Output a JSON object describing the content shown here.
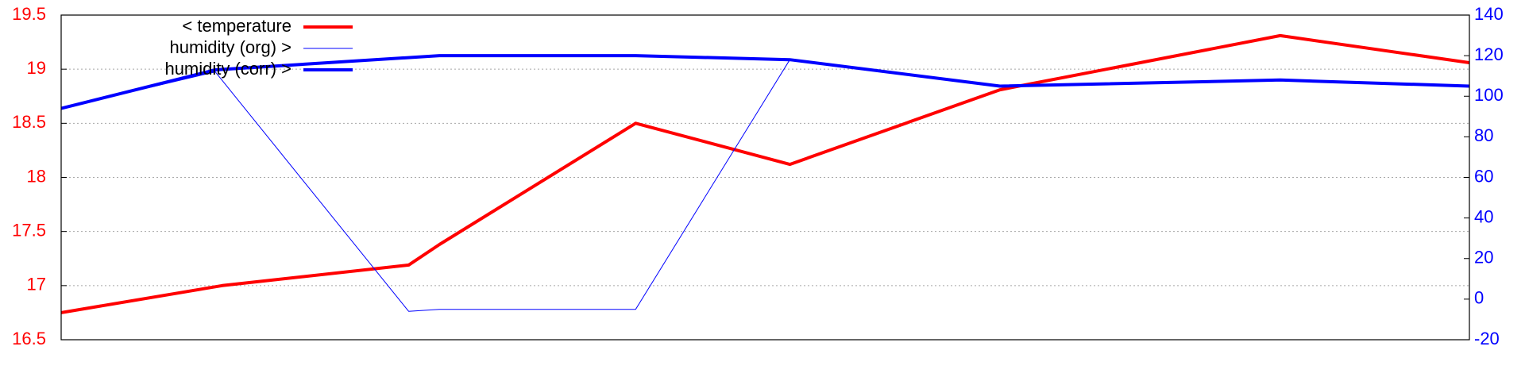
{
  "chart_data": {
    "type": "line",
    "x": [
      0,
      1,
      2,
      3,
      4,
      5,
      6,
      7,
      8,
      9
    ],
    "x_ticks_shown": false,
    "grid": "horizontal dotted",
    "legend": "top-left",
    "y_left": {
      "ylim": [
        16.5,
        19.5
      ],
      "ticks": [
        "16.5",
        "17",
        "17.5",
        "18",
        "18.5",
        "19",
        "19.5"
      ],
      "color": "#ff0000"
    },
    "y_right": {
      "ylim": [
        -20,
        140
      ],
      "ticks": [
        "-20",
        "0",
        "20",
        "40",
        "60",
        "80",
        "100",
        "120",
        "140"
      ],
      "color": "#0000ff"
    },
    "series": [
      {
        "name": "< temperature",
        "axis": "left",
        "color": "#ff0000",
        "line": "thick",
        "points": [
          {
            "x": 0.0,
            "y": 16.75
          },
          {
            "x": 1.15,
            "y": 17.0
          },
          {
            "x": 2.48,
            "y": 17.19
          },
          {
            "x": 2.7,
            "y": 17.38
          },
          {
            "x": 4.1,
            "y": 18.5
          },
          {
            "x": 5.2,
            "y": 18.12
          },
          {
            "x": 6.7,
            "y": 18.81
          },
          {
            "x": 8.7,
            "y": 19.31
          },
          {
            "x": 10.05,
            "y": 19.06
          }
        ]
      },
      {
        "name": "humidity (org) >",
        "axis": "right",
        "color": "#0000ff",
        "line": "thin",
        "points": [
          {
            "x": 0.0,
            "y": 94
          },
          {
            "x": 1.1,
            "y": 112
          },
          {
            "x": 2.48,
            "y": -6
          },
          {
            "x": 2.7,
            "y": -5
          },
          {
            "x": 4.1,
            "y": -5
          },
          {
            "x": 5.2,
            "y": 118
          },
          {
            "x": 6.7,
            "y": 105
          },
          {
            "x": 8.7,
            "y": 108
          },
          {
            "x": 10.05,
            "y": 105
          }
        ]
      },
      {
        "name": "humidity (corr) >",
        "axis": "right",
        "color": "#0000ff",
        "line": "thick",
        "points": [
          {
            "x": 0.0,
            "y": 94
          },
          {
            "x": 1.1,
            "y": 113
          },
          {
            "x": 2.7,
            "y": 120
          },
          {
            "x": 4.1,
            "y": 120
          },
          {
            "x": 5.2,
            "y": 118
          },
          {
            "x": 6.7,
            "y": 105
          },
          {
            "x": 8.7,
            "y": 108
          },
          {
            "x": 10.05,
            "y": 105
          }
        ]
      }
    ]
  }
}
